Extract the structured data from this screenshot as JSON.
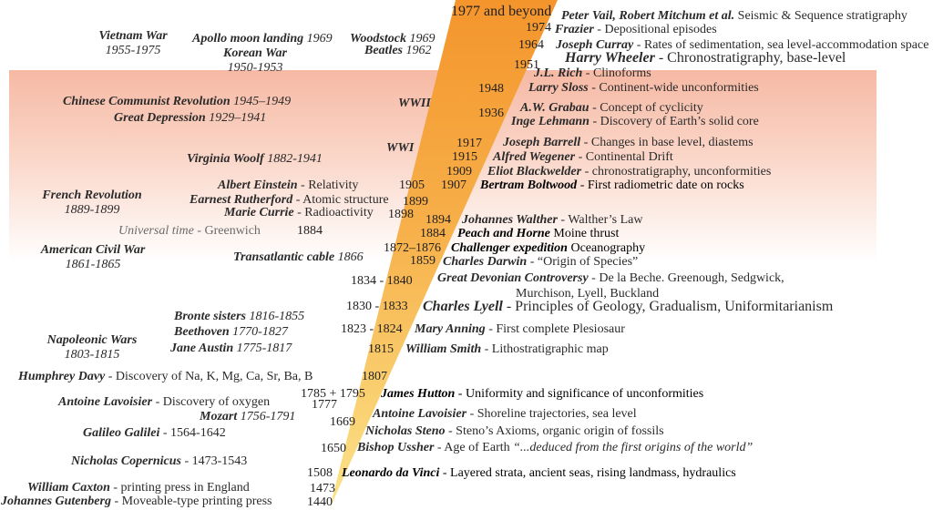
{
  "colors": {
    "band_top": "#f6b9a4",
    "wedge_top": "#f4952c",
    "wedge_bottom": "#fbe48a"
  },
  "history": {
    "vietnam": {
      "name": "Vietnam War",
      "dates": "1955-1975"
    },
    "apollo": {
      "name": "Apollo moon landing",
      "year": "1969"
    },
    "korean": {
      "name": "Korean War",
      "dates": "1950-1953"
    },
    "woodstock": {
      "name": "Woodstock",
      "year": "1969"
    },
    "beatles": {
      "name": "Beatles",
      "year": "1962"
    },
    "chinese_revolution": {
      "name": "Chinese Communist Revolution",
      "dates": "1945–1949"
    },
    "great_depression": {
      "name": "Great Depression",
      "dates": "1929–1941"
    },
    "wwii": "WWII",
    "wwi": "WWI",
    "virginia_woolf": {
      "name": "Virginia Woolf",
      "dates": "1882-1941"
    },
    "french_revolution": {
      "name": "French Revolution",
      "dates": "1889-1899"
    },
    "universal_time": {
      "name": "Universal time",
      "desc": " - Greenwich"
    },
    "american_civil_war": {
      "name": "American Civil War",
      "dates": "1861-1865"
    },
    "transatlantic": {
      "name": "Transatlantic cable",
      "year": "1866"
    },
    "bronte": {
      "name": "Bronte sisters",
      "dates": "1816-1855"
    },
    "beethoven": {
      "name": "Beethoven",
      "dates": "1770-1827"
    },
    "napoleonic": {
      "name": "Napoleonic Wars",
      "dates": "1803-1815"
    },
    "jane_austin": {
      "name": "Jane Austin",
      "dates": "1775-1817"
    },
    "mozart": {
      "name": "Mozart",
      "dates": "1756-1791"
    }
  },
  "science_left": {
    "einstein": {
      "name": "Albert Einstein",
      "desc": " - Relativity"
    },
    "rutherford": {
      "name": "Earnest Rutherford",
      "desc": " - Atomic structure"
    },
    "curie": {
      "name": "Marie Currie",
      "desc": " - Radioactivity"
    },
    "davy": {
      "name": "Humphrey Davy",
      "desc": " - Discovery of Na, K, Mg, Ca, Sr, Ba, B"
    },
    "lavoisier_oxygen": {
      "name": "Antoine Lavoisier",
      "desc": " - Discovery of oxygen"
    },
    "galileo": {
      "name": "Galileo Galilei",
      "desc": " - 1564-1642"
    },
    "copernicus": {
      "name": "Nicholas Copernicus",
      "desc": " - 1473-1543"
    },
    "caxton": {
      "name": "William Caxton",
      "desc": " - printing press in England"
    },
    "gutenberg": {
      "name": "Johannes Gutenberg",
      "desc": " - Moveable-type printing press"
    }
  },
  "years": {
    "y1977": "1977 and beyond",
    "y1974": "1974",
    "y1964": "1964",
    "y1951": "1951",
    "y1948": "1948",
    "y1936": "1936",
    "y1917": "1917",
    "y1915": "1915",
    "y1909": "1909",
    "y1907": "1907",
    "y1905": "1905",
    "y1899": "1899",
    "y1898": "1898",
    "y1894": "1894",
    "y1884a": "1884",
    "y1884b": "1884",
    "y1872": "1872–1876",
    "y1859": "1859",
    "y1834": "1834 - 1840",
    "y1830": "1830 - 1833",
    "y1823": "1823 - 1824",
    "y1815": "1815",
    "y1807": "1807",
    "y1785": "1785 + 1795",
    "y1777": "1777",
    "y1669": "1669",
    "y1650": "1650",
    "y1508": "1508",
    "y1473": "1473",
    "y1440": "1440"
  },
  "stratigraphy": {
    "vail": {
      "name": "Peter Vail, Robert Mitchum et al.",
      "desc": " Seismic & Sequence stratigraphy"
    },
    "frazier": {
      "name": "Frazier",
      "desc": " - Depositional episodes"
    },
    "curray": {
      "name": "Joseph Curray",
      "desc": " - Rates of sedimentation, sea level-accommodation space"
    },
    "wheeler": {
      "name": "Harry Wheeler",
      "desc": " - Chronostratigraphy, base-level"
    },
    "rich": {
      "name": "J.L. Rich",
      "desc": " - Clinoforms"
    },
    "sloss": {
      "name": "Larry Sloss",
      "desc": " - Continent-wide unconformities"
    },
    "grabau": {
      "name": "A.W. Grabau",
      "desc": " - Concept of cyclicity"
    },
    "lehmann": {
      "name": "Inge Lehmann",
      "desc": " - Discovery of Earth’s solid core"
    },
    "barrell": {
      "name": "Joseph Barrell",
      "desc": " - Changes in base level, diastems"
    },
    "wegener": {
      "name": "Alfred Wegener",
      "desc": " - Continental Drift"
    },
    "blackwelder": {
      "name": "Eliot Blackwelder",
      "desc": " - chronostratigraphy, unconformities"
    },
    "boltwood": {
      "name": "Bertram Boltwood",
      "desc": " - First radiometric date on rocks"
    },
    "walther": {
      "name": "Johannes Walther",
      "desc": " - Walther’s Law"
    },
    "peach": {
      "name": "Peach and Horne",
      "desc": " Moine thrust"
    },
    "challenger": {
      "name": "Challenger expedition",
      "desc": " Oceanography"
    },
    "darwin": {
      "name": "Charles Darwin",
      "desc": " - “Origin of Species”"
    },
    "devonian": {
      "name": "Great Devonian Controversy",
      "desc": " - De la Beche. Greenough, Sedgwick,",
      "desc2": "Murchison, Lyell, Buckland"
    },
    "lyell": {
      "name": "Charles Lyell",
      "desc": " - Principles of Geology, Gradualism, Uniformitarianism"
    },
    "anning": {
      "name": "Mary Anning",
      "desc": " - First complete Plesiosaur"
    },
    "smith": {
      "name": "William Smith",
      "desc": " - Lithostratigraphic map"
    },
    "hutton": {
      "name": "James Hutton",
      "desc": " - Uniformity and significance of unconformities"
    },
    "lavoisier_shore": {
      "name": "Antoine Lavoisier",
      "desc": " - Shoreline trajectories, sea level"
    },
    "steno": {
      "name": "Nicholas Steno",
      "desc": " - Steno’s Axioms, organic origin of fossils"
    },
    "ussher": {
      "name": "Bishop Ussher",
      "desc": " - Age of Earth ",
      "quote": "“...deduced from the first origins of the world”"
    },
    "davinci": {
      "name": "Leonardo da Vinci",
      "desc": " - Layered strata, ancient seas, rising landmass, hydraulics"
    }
  }
}
